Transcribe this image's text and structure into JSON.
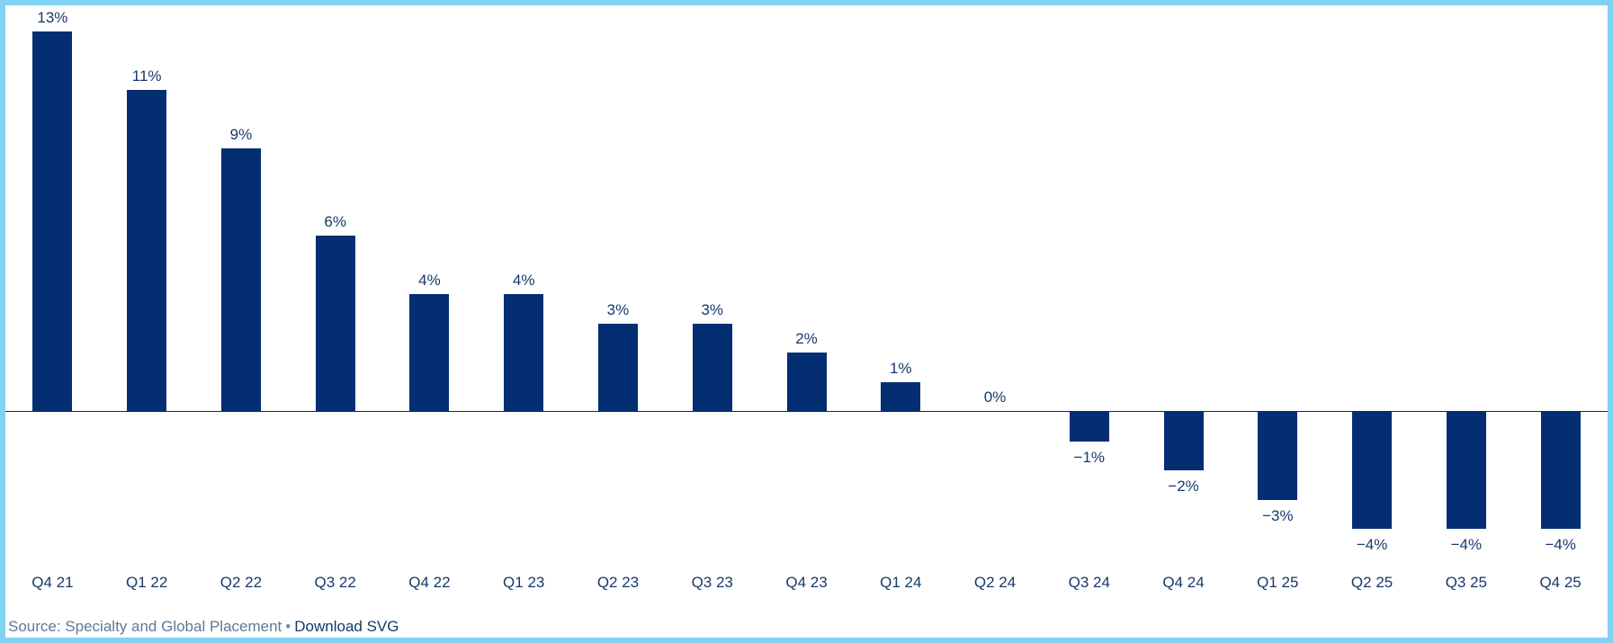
{
  "chart_data": {
    "type": "bar",
    "title": "",
    "xlabel": "",
    "ylabel": "",
    "categories": [
      "Q4 21",
      "Q1 22",
      "Q2 22",
      "Q3 22",
      "Q4 22",
      "Q1 23",
      "Q2 23",
      "Q3 23",
      "Q4 23",
      "Q1 24",
      "Q2 24",
      "Q3 24",
      "Q4 24",
      "Q1 25",
      "Q2 25",
      "Q3 25",
      "Q4 25"
    ],
    "values": [
      13,
      11,
      9,
      6,
      4,
      4,
      3,
      3,
      2,
      1,
      0,
      -1,
      -2,
      -3,
      -4,
      -4,
      -4
    ],
    "value_labels": [
      "13%",
      "11%",
      "9%",
      "6%",
      "4%",
      "4%",
      "3%",
      "3%",
      "2%",
      "1%",
      "0%",
      "−1%",
      "−2%",
      "−3%",
      "−4%",
      "−4%",
      "−4%"
    ],
    "unit": "%",
    "ylim": [
      -5.2,
      13.9
    ],
    "grid": false,
    "legend": "none",
    "bar_color": "#032e72",
    "axis_line_color": "#14294b",
    "label_color": "#17396b"
  },
  "footer": {
    "source_text": "Source: Specialty and Global Placement",
    "separator": "•",
    "download_label": "Download SVG"
  },
  "colors": {
    "frame_border": "#7fd2f1",
    "background": "#ffffff"
  }
}
